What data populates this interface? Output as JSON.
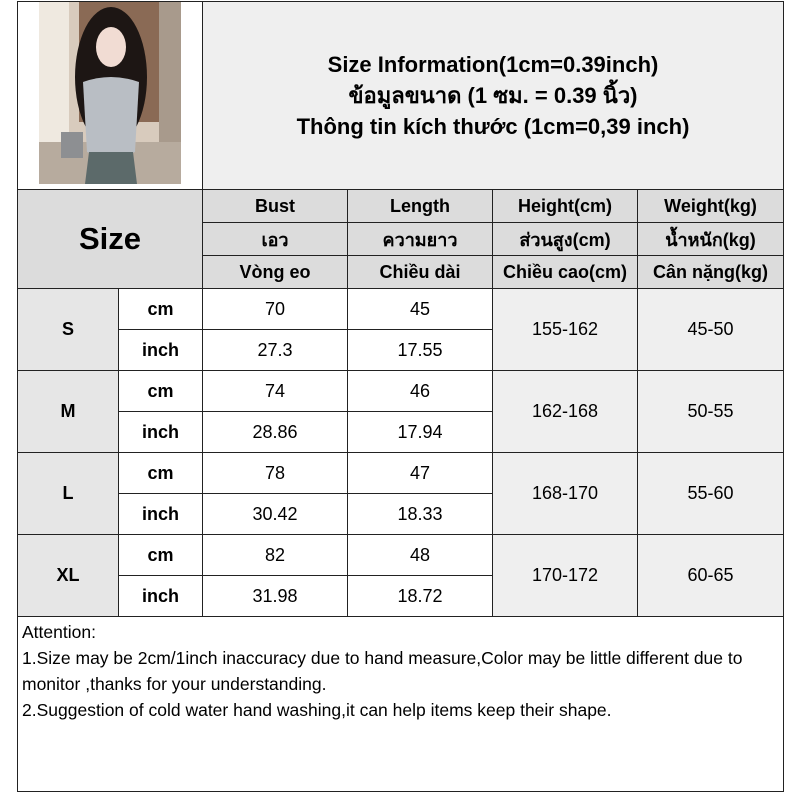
{
  "title": {
    "en": "Size Information(1cm=0.39inch)",
    "th": "ข้อมูลขนาด (1 ซม. = 0.39 นิ้ว)",
    "vi": "Thông tin kích thước (1cm=0,39 inch)"
  },
  "header": {
    "size_label": "Size",
    "columns": [
      {
        "en": "Bust",
        "th": "เอว",
        "vi": "Vòng eo"
      },
      {
        "en": "Length",
        "th": "ความยาว",
        "vi": "Chiều dài"
      },
      {
        "en": "Height(cm)",
        "th": "ส่วนสูง(cm)",
        "vi": "Chiều cao(cm)"
      },
      {
        "en": "Weight(kg)",
        "th": "น้ำหนัก(kg)",
        "vi": "Cân nặng(kg)"
      }
    ]
  },
  "rows": [
    {
      "size": "S",
      "cm_label": "cm",
      "inch_label": "inch",
      "bust_cm": "70",
      "length_cm": "45",
      "bust_in": "27.3",
      "length_in": "17.55",
      "height": "155-162",
      "weight": "45-50"
    },
    {
      "size": "M",
      "cm_label": "cm",
      "inch_label": "inch",
      "bust_cm": "74",
      "length_cm": "46",
      "bust_in": "28.86",
      "length_in": "17.94",
      "height": "162-168",
      "weight": "50-55"
    },
    {
      "size": "L",
      "cm_label": "cm",
      "inch_label": "inch",
      "bust_cm": "78",
      "length_cm": "47",
      "bust_in": "30.42",
      "length_in": "18.33",
      "height": "168-170",
      "weight": "55-60"
    },
    {
      "size": "XL",
      "cm_label": "cm",
      "inch_label": "inch",
      "bust_cm": "82",
      "length_cm": "48",
      "bust_in": "31.98",
      "length_in": "18.72",
      "height": "170-172",
      "weight": "60-65"
    }
  ],
  "attention": {
    "heading": "Attention:",
    "line1": "1.Size may be 2cm/1inch inaccuracy due to hand measure,Color may be little different due to monitor ,thanks for your understanding.",
    "line2": "2.Suggestion of cold water hand washing,it can help items keep their shape."
  }
}
